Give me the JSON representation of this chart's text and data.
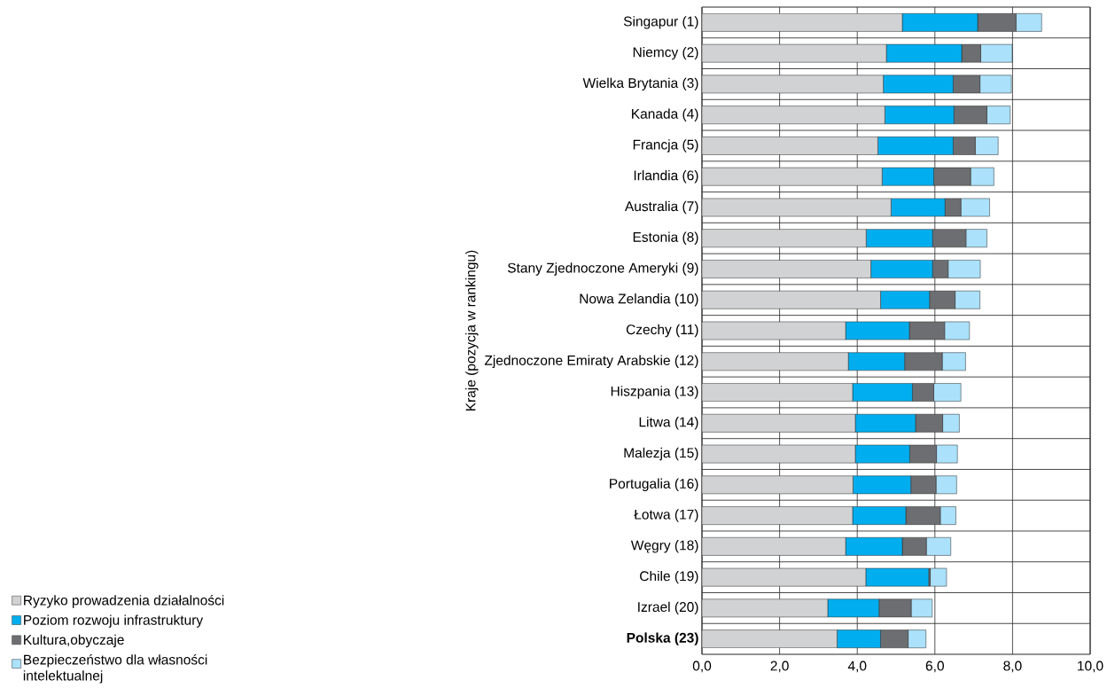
{
  "chart_data": {
    "type": "bar",
    "orientation": "horizontal",
    "stacked": true,
    "ylabel": "Kraje (pozycja w rankingu)",
    "categories": [
      "Singapur (1)",
      "Niemcy (2)",
      "Wielka Brytania (3)",
      "Kanada (4)",
      "Francja (5)",
      "Irlandia (6)",
      "Australia (7)",
      "Estonia (8)",
      "Stany Zjednoczone Ameryki (9)",
      "Nowa Zelandia (10)",
      "Czechy (11)",
      "Zjednoczone Emiraty Arabskie (12)",
      "Hiszpania (13)",
      "Litwa (14)",
      "Malezja (15)",
      "Portugalia (16)",
      "Łotwa (17)",
      "Węgry (18)",
      "Chile (19)",
      "Izrael (20)",
      "**Polska (23)**"
    ],
    "series": [
      {
        "name": "Ryzyko prowadzenia działalności",
        "color": "#d1d2d4",
        "values": [
          5.16,
          4.75,
          4.67,
          4.71,
          4.53,
          4.64,
          4.87,
          4.23,
          4.35,
          4.6,
          3.7,
          3.77,
          3.88,
          3.95,
          3.95,
          3.89,
          3.88,
          3.7,
          4.22,
          3.24,
          3.48
        ]
      },
      {
        "name": "Poziom rozwoju infrastruktury",
        "color": "#00aeef",
        "values": [
          1.94,
          1.94,
          1.8,
          1.78,
          1.94,
          1.33,
          1.39,
          1.71,
          1.59,
          1.26,
          1.64,
          1.45,
          1.54,
          1.55,
          1.4,
          1.49,
          1.37,
          1.46,
          1.62,
          1.32,
          1.12
        ]
      },
      {
        "name": "Kultura,obyczaje",
        "color": "#6d6e71",
        "values": [
          0.99,
          0.49,
          0.69,
          0.85,
          0.57,
          0.95,
          0.41,
          0.86,
          0.4,
          0.66,
          0.91,
          0.97,
          0.55,
          0.7,
          0.69,
          0.65,
          0.89,
          0.62,
          0.04,
          0.83,
          0.71
        ]
      },
      {
        "name": "Bezpieczeństwo dla własności intelektualnej",
        "color": "#abe1fa",
        "values": [
          0.66,
          0.81,
          0.81,
          0.6,
          0.59,
          0.6,
          0.74,
          0.54,
          0.83,
          0.64,
          0.64,
          0.6,
          0.7,
          0.43,
          0.54,
          0.53,
          0.4,
          0.63,
          0.42,
          0.54,
          0.46
        ]
      }
    ],
    "xlim": [
      0,
      10
    ],
    "xticks": [
      {
        "value": 0,
        "label": "0,0"
      },
      {
        "value": 2,
        "label": "2,0"
      },
      {
        "value": 4,
        "label": "4,0"
      },
      {
        "value": 6,
        "label": "6,0"
      },
      {
        "value": 8,
        "label": "8,0"
      },
      {
        "value": 10,
        "label": "10,0"
      }
    ],
    "grid": true,
    "legend": "bottom left"
  }
}
